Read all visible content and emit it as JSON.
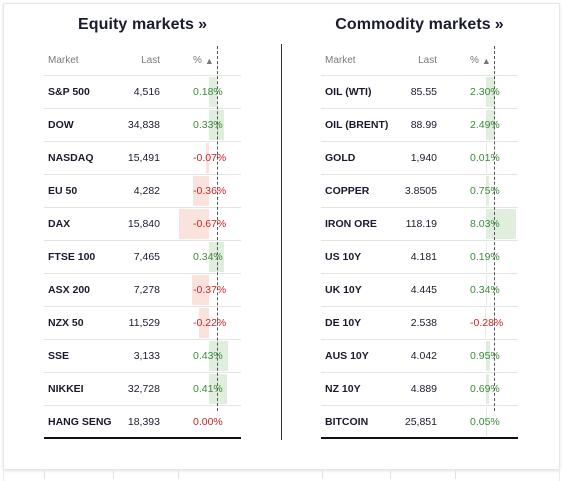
{
  "colors": {
    "positive_text": "#3d8a3d",
    "negative_text": "#cc2222",
    "positive_bar": "#dfeedd",
    "negative_bar": "#fbe3dd"
  },
  "panels": [
    {
      "title": "Equity markets",
      "title_suffix": "»",
      "headers": {
        "market": "Market",
        "last": "Last",
        "pct": "%",
        "sort_icon": "▲"
      },
      "scale_max": 0.67,
      "rows": [
        {
          "market": "S&P 500",
          "last": "4,516",
          "pct": "0.18%",
          "value": 0.18
        },
        {
          "market": "DOW",
          "last": "34,838",
          "pct": "0.33%",
          "value": 0.33
        },
        {
          "market": "NASDAQ",
          "last": "15,491",
          "pct": "-0.07%",
          "value": -0.07
        },
        {
          "market": "EU 50",
          "last": "4,282",
          "pct": "-0.36%",
          "value": -0.36
        },
        {
          "market": "DAX",
          "last": "15,840",
          "pct": "-0.67%",
          "value": -0.67
        },
        {
          "market": "FTSE 100",
          "last": "7,465",
          "pct": "0.34%",
          "value": 0.34
        },
        {
          "market": "ASX 200",
          "last": "7,278",
          "pct": "-0.37%",
          "value": -0.37
        },
        {
          "market": "NZX 50",
          "last": "11,529",
          "pct": "-0.22%",
          "value": -0.22
        },
        {
          "market": "SSE",
          "last": "3,133",
          "pct": "0.43%",
          "value": 0.43
        },
        {
          "market": "NIKKEI",
          "last": "32,728",
          "pct": "0.41%",
          "value": 0.41
        },
        {
          "market": "HANG SENG",
          "last": "18,393",
          "pct": "0.00%",
          "value": 0.0
        }
      ]
    },
    {
      "title": "Commodity markets",
      "title_suffix": "»",
      "headers": {
        "market": "Market",
        "last": "Last",
        "pct": "%",
        "sort_icon": "▲"
      },
      "scale_max": 8.03,
      "rows": [
        {
          "market": "OIL (WTI)",
          "last": "85.55",
          "pct": "2.30%",
          "value": 2.3
        },
        {
          "market": "OIL (BRENT)",
          "last": "88.99",
          "pct": "2.49%",
          "value": 2.49
        },
        {
          "market": "GOLD",
          "last": "1,940",
          "pct": "0.01%",
          "value": 0.01
        },
        {
          "market": "COPPER",
          "last": "3.8505",
          "pct": "0.75%",
          "value": 0.75
        },
        {
          "market": "IRON ORE",
          "last": "118.19",
          "pct": "8.03%",
          "value": 8.03
        },
        {
          "market": "US 10Y",
          "last": "4.181",
          "pct": "0.19%",
          "value": 0.19
        },
        {
          "market": "UK 10Y",
          "last": "4.445",
          "pct": "0.34%",
          "value": 0.34
        },
        {
          "market": "DE 10Y",
          "last": "2.538",
          "pct": "-0.28%",
          "value": -0.28
        },
        {
          "market": "AUS 10Y",
          "last": "4.042",
          "pct": "0.95%",
          "value": 0.95
        },
        {
          "market": "NZ 10Y",
          "last": "4.889",
          "pct": "0.69%",
          "value": 0.69
        },
        {
          "market": "BITCOIN",
          "last": "25,851",
          "pct": "0.05%",
          "value": 0.05
        }
      ]
    }
  ]
}
